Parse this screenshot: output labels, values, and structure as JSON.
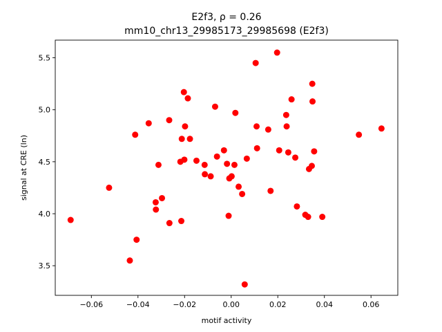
{
  "chart_data": {
    "type": "scatter",
    "title_line1": "E2f3, ρ = 0.26",
    "title_line2": "mm10_chr13_29985173_29985698 (E2f3)",
    "xlabel": "motif activity",
    "ylabel": "signal at CRE (ln)",
    "xlim": [
      -0.0755,
      0.0715
    ],
    "ylim": [
      3.215,
      5.67
    ],
    "xticks": [
      -0.06,
      -0.04,
      -0.02,
      0.0,
      0.02,
      0.04,
      0.06
    ],
    "xtick_labels": [
      "−0.06",
      "−0.04",
      "−0.02",
      "0.00",
      "0.02",
      "0.04",
      "0.06"
    ],
    "yticks": [
      3.5,
      4.0,
      4.5,
      5.0,
      5.5
    ],
    "ytick_labels": [
      "3.5",
      "4.0",
      "4.5",
      "5.0",
      "5.5"
    ],
    "grid": false,
    "marker_color": "#ff0000",
    "points": [
      {
        "x": -0.0689,
        "y": 3.94
      },
      {
        "x": -0.0524,
        "y": 4.25
      },
      {
        "x": -0.0435,
        "y": 3.55
      },
      {
        "x": -0.0412,
        "y": 4.76
      },
      {
        "x": -0.0406,
        "y": 3.75
      },
      {
        "x": -0.0354,
        "y": 4.87
      },
      {
        "x": -0.0324,
        "y": 4.11
      },
      {
        "x": -0.0323,
        "y": 4.04
      },
      {
        "x": -0.0312,
        "y": 4.47
      },
      {
        "x": -0.0297,
        "y": 4.15
      },
      {
        "x": -0.0266,
        "y": 4.9
      },
      {
        "x": -0.0265,
        "y": 3.91
      },
      {
        "x": -0.0218,
        "y": 4.5
      },
      {
        "x": -0.0214,
        "y": 3.93
      },
      {
        "x": -0.0212,
        "y": 4.72
      },
      {
        "x": -0.0203,
        "y": 5.17
      },
      {
        "x": -0.0201,
        "y": 4.52
      },
      {
        "x": -0.0198,
        "y": 4.84
      },
      {
        "x": -0.0186,
        "y": 5.11
      },
      {
        "x": -0.0177,
        "y": 4.72
      },
      {
        "x": -0.0149,
        "y": 4.51
      },
      {
        "x": -0.0114,
        "y": 4.47
      },
      {
        "x": -0.0113,
        "y": 4.38
      },
      {
        "x": -0.0088,
        "y": 4.36
      },
      {
        "x": -0.0069,
        "y": 5.03
      },
      {
        "x": -0.0061,
        "y": 4.55
      },
      {
        "x": -0.0031,
        "y": 4.61
      },
      {
        "x": -0.0018,
        "y": 4.48
      },
      {
        "x": -0.0011,
        "y": 3.98
      },
      {
        "x": -0.0008,
        "y": 4.34
      },
      {
        "x": 0.0002,
        "y": 4.36
      },
      {
        "x": 0.0014,
        "y": 4.47
      },
      {
        "x": 0.0018,
        "y": 4.97
      },
      {
        "x": 0.0032,
        "y": 4.26
      },
      {
        "x": 0.0047,
        "y": 4.19
      },
      {
        "x": 0.0058,
        "y": 3.32
      },
      {
        "x": 0.0067,
        "y": 4.53
      },
      {
        "x": 0.0105,
        "y": 5.45
      },
      {
        "x": 0.0109,
        "y": 4.84
      },
      {
        "x": 0.0111,
        "y": 4.63
      },
      {
        "x": 0.0159,
        "y": 4.81
      },
      {
        "x": 0.0169,
        "y": 4.22
      },
      {
        "x": 0.0197,
        "y": 5.55
      },
      {
        "x": 0.0206,
        "y": 4.61
      },
      {
        "x": 0.0236,
        "y": 4.95
      },
      {
        "x": 0.0238,
        "y": 4.84
      },
      {
        "x": 0.0245,
        "y": 4.59
      },
      {
        "x": 0.0259,
        "y": 5.1
      },
      {
        "x": 0.0275,
        "y": 4.54
      },
      {
        "x": 0.0282,
        "y": 4.07
      },
      {
        "x": 0.0318,
        "y": 3.99
      },
      {
        "x": 0.033,
        "y": 3.97
      },
      {
        "x": 0.0334,
        "y": 4.43
      },
      {
        "x": 0.0346,
        "y": 4.46
      },
      {
        "x": 0.0348,
        "y": 5.25
      },
      {
        "x": 0.0349,
        "y": 5.08
      },
      {
        "x": 0.0356,
        "y": 4.6
      },
      {
        "x": 0.0391,
        "y": 3.97
      },
      {
        "x": 0.0548,
        "y": 4.76
      },
      {
        "x": 0.0645,
        "y": 4.82
      }
    ]
  }
}
